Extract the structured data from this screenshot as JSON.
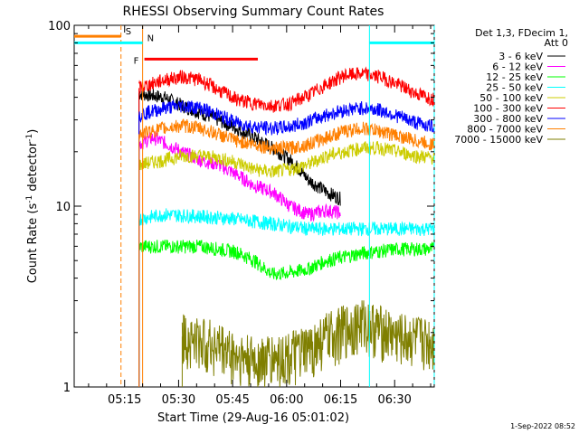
{
  "chart_data": {
    "type": "line",
    "title": "RHESSI Observing Summary Count Rates",
    "ylabel_base": "Count Rate (s",
    "ylabel_sup1": "-1",
    "ylabel_mid": " detector",
    "ylabel_sup2": "-1",
    "ylabel_end": ")",
    "xlabel": "Start Time (29-Aug-16 05:01:02)",
    "footer_stamp": "1-Sep-2022 08:52",
    "y_scale": "log",
    "ylim": [
      1,
      100
    ],
    "y_ticks": [
      {
        "value": 1,
        "label": "1"
      },
      {
        "value": 10,
        "label": "10"
      },
      {
        "value": 100,
        "label": "100"
      }
    ],
    "xlim_minutes": [
      0,
      100
    ],
    "x_ticks": [
      {
        "minute": 14,
        "label": "05:15"
      },
      {
        "minute": 29,
        "label": "05:30"
      },
      {
        "minute": 44,
        "label": "05:45"
      },
      {
        "minute": 59,
        "label": "06:00"
      },
      {
        "minute": 74,
        "label": "06:15"
      },
      {
        "minute": 89,
        "label": "06:30"
      }
    ],
    "legend_header": [
      "Det 1,3, FDecim 1,",
      "Att 0"
    ],
    "legend_placement": "right",
    "series": [
      {
        "name": "3 - 6 keV",
        "color": "#000000",
        "points": [
          [
            18,
            42
          ],
          [
            25,
            40
          ],
          [
            30,
            36
          ],
          [
            35,
            33
          ],
          [
            40,
            30
          ],
          [
            45,
            27
          ],
          [
            50,
            24
          ],
          [
            55,
            21
          ],
          [
            60,
            18
          ],
          [
            65,
            14
          ],
          [
            70,
            12
          ],
          [
            74,
            11
          ]
        ]
      },
      {
        "name": "6 - 12 keV",
        "color": "#ff00ff",
        "points": [
          [
            18,
            22
          ],
          [
            22,
            24
          ],
          [
            26,
            22
          ],
          [
            30,
            20
          ],
          [
            35,
            18
          ],
          [
            40,
            17
          ],
          [
            45,
            15
          ],
          [
            50,
            13
          ],
          [
            55,
            12
          ],
          [
            60,
            10
          ],
          [
            65,
            9
          ],
          [
            70,
            9.5
          ],
          [
            74,
            9.2
          ]
        ]
      },
      {
        "name": "12 - 25 keV",
        "color": "#00ff00",
        "points": [
          [
            18,
            6
          ],
          [
            25,
            6
          ],
          [
            35,
            6
          ],
          [
            45,
            5.6
          ],
          [
            50,
            5
          ],
          [
            55,
            4.2
          ],
          [
            60,
            4.3
          ],
          [
            65,
            4.5
          ],
          [
            70,
            5
          ],
          [
            80,
            5.5
          ],
          [
            90,
            5.8
          ],
          [
            100,
            5.8
          ]
        ]
      },
      {
        "name": "25 - 50 keV",
        "color": "#00ffff",
        "points": [
          [
            18,
            8.5
          ],
          [
            25,
            9
          ],
          [
            35,
            8.8
          ],
          [
            45,
            8.5
          ],
          [
            55,
            8
          ],
          [
            65,
            7.5
          ],
          [
            75,
            7.5
          ],
          [
            85,
            7.5
          ],
          [
            100,
            7.5
          ]
        ]
      },
      {
        "name": "50 - 100 keV",
        "color": "#cccc00",
        "points": [
          [
            18,
            17
          ],
          [
            25,
            18
          ],
          [
            30,
            19
          ],
          [
            35,
            19
          ],
          [
            40,
            18.5
          ],
          [
            45,
            17.5
          ],
          [
            50,
            16
          ],
          [
            55,
            15.5
          ],
          [
            60,
            16
          ],
          [
            65,
            17
          ],
          [
            70,
            19
          ],
          [
            75,
            20
          ],
          [
            80,
            21
          ],
          [
            85,
            21
          ],
          [
            90,
            20
          ],
          [
            95,
            19
          ],
          [
            100,
            18.5
          ]
        ]
      },
      {
        "name": "100 - 300 keV",
        "color": "#ff0000",
        "points": [
          [
            18,
            45
          ],
          [
            25,
            50
          ],
          [
            30,
            52
          ],
          [
            35,
            50
          ],
          [
            40,
            44
          ],
          [
            45,
            39
          ],
          [
            50,
            37
          ],
          [
            55,
            36
          ],
          [
            60,
            37
          ],
          [
            65,
            41
          ],
          [
            70,
            47
          ],
          [
            75,
            53
          ],
          [
            80,
            54
          ],
          [
            85,
            52
          ],
          [
            90,
            47
          ],
          [
            95,
            42
          ],
          [
            100,
            39
          ]
        ]
      },
      {
        "name": "300 - 800 keV",
        "color": "#0000ff",
        "points": [
          [
            18,
            32
          ],
          [
            25,
            35
          ],
          [
            30,
            36
          ],
          [
            35,
            35
          ],
          [
            40,
            32
          ],
          [
            45,
            29
          ],
          [
            50,
            27.5
          ],
          [
            55,
            27
          ],
          [
            60,
            27.5
          ],
          [
            65,
            29.5
          ],
          [
            70,
            32
          ],
          [
            75,
            34
          ],
          [
            80,
            35
          ],
          [
            85,
            34
          ],
          [
            90,
            31.5
          ],
          [
            95,
            29
          ],
          [
            100,
            27.5
          ]
        ]
      },
      {
        "name": "800 - 7000 keV",
        "color": "#ff7f00",
        "points": [
          [
            18,
            25
          ],
          [
            25,
            27
          ],
          [
            30,
            28
          ],
          [
            35,
            27
          ],
          [
            40,
            25
          ],
          [
            45,
            23
          ],
          [
            50,
            22
          ],
          [
            55,
            21
          ],
          [
            60,
            21
          ],
          [
            65,
            22
          ],
          [
            70,
            24
          ],
          [
            75,
            26
          ],
          [
            80,
            27
          ],
          [
            85,
            26
          ],
          [
            90,
            24.5
          ],
          [
            95,
            23
          ],
          [
            100,
            22
          ]
        ]
      },
      {
        "name": "7000 - 15000 keV",
        "color": "#7f7f00",
        "points": [
          [
            30,
            1.9
          ],
          [
            35,
            1.8
          ],
          [
            40,
            1.7
          ],
          [
            45,
            1.5
          ],
          [
            50,
            1.4
          ],
          [
            55,
            1.45
          ],
          [
            60,
            1.5
          ],
          [
            65,
            1.6
          ],
          [
            70,
            1.9
          ],
          [
            80,
            2.3
          ],
          [
            85,
            2.1
          ],
          [
            90,
            1.9
          ],
          [
            100,
            1.8
          ]
        ]
      }
    ],
    "flag_bars": [
      {
        "label": "S",
        "color": "#ff7f00",
        "x0": 0,
        "x1": 13,
        "value": 87
      },
      {
        "label": "N",
        "color": "#00ffff",
        "x0": 0,
        "x1": 19,
        "value": 80
      },
      {
        "label": "N",
        "color": "#00ffff",
        "x0": 82,
        "x1": 100,
        "value": 80
      },
      {
        "label": "F",
        "color": "#ff0000",
        "x0": 19.5,
        "x1": 51,
        "value": 65
      }
    ],
    "flag_markers": [
      {
        "color": "#ff7f00",
        "style": "dashed",
        "x": 13
      },
      {
        "color": "#ff7f00",
        "style": "solid",
        "x": 19
      },
      {
        "color": "#00ffff",
        "style": "solid",
        "x": 82
      },
      {
        "color": "#00ffff",
        "style": "dashed",
        "x": 100
      }
    ],
    "grid": false
  }
}
